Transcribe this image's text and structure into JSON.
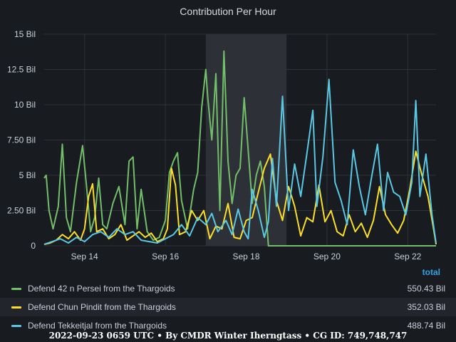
{
  "title": "Contribution Per Hour",
  "legend_header": "total",
  "footer": "2022-09-23 0659 UTC • By CMDR Winter Iherngtass • CG ID: 749,748,747",
  "chart_data": {
    "type": "line",
    "title": "Contribution Per Hour",
    "ylim": [
      0,
      15
    ],
    "y_ticks": [
      {
        "value": 0,
        "label": "0"
      },
      {
        "value": 2.5,
        "label": "2.50 Bil"
      },
      {
        "value": 5,
        "label": "5 Bil"
      },
      {
        "value": 7.5,
        "label": "7.50 Bil"
      },
      {
        "value": 10,
        "label": "10 Bil"
      },
      {
        "value": 12.5,
        "label": "12.5 Bil"
      },
      {
        "value": 15,
        "label": "15 Bil"
      }
    ],
    "x_range_days": [
      13.0,
      22.7
    ],
    "x_ticks": [
      {
        "value": 14,
        "label": "Sep 14"
      },
      {
        "value": 16,
        "label": "Sep 16"
      },
      {
        "value": 18,
        "label": "Sep 18"
      },
      {
        "value": 20,
        "label": "Sep 20"
      },
      {
        "value": 22,
        "label": "Sep 22"
      }
    ],
    "highlight_band_days": [
      17.0,
      19.0
    ],
    "grid": true,
    "series": [
      {
        "name": "Defend 42 n Persei from the Thargoids",
        "color": "#73bf69",
        "total": "550.43 Bil",
        "x": [
          13.0,
          13.05,
          13.12,
          13.22,
          13.35,
          13.45,
          13.55,
          13.65,
          13.8,
          13.95,
          14.05,
          14.15,
          14.25,
          14.35,
          14.45,
          14.55,
          14.7,
          14.85,
          15.0,
          15.1,
          15.2,
          15.3,
          15.4,
          15.55,
          15.7,
          15.85,
          16.0,
          16.1,
          16.2,
          16.3,
          16.4,
          16.55,
          16.7,
          16.8,
          16.9,
          17.0,
          17.05,
          17.15,
          17.25,
          17.35,
          17.45,
          17.55,
          17.65,
          17.75,
          17.85,
          17.95,
          18.05,
          18.15,
          18.25,
          18.35,
          18.45,
          18.55,
          18.65,
          18.75,
          18.85,
          18.95,
          19.1,
          19.5,
          20.0,
          20.5,
          21.0,
          21.5,
          22.0,
          22.5,
          22.7
        ],
        "values": [
          4.8,
          5.0,
          2.5,
          1.2,
          2.8,
          7.2,
          2.0,
          1.0,
          4.5,
          7.1,
          4.2,
          1.0,
          2.0,
          4.8,
          1.5,
          1.2,
          3.0,
          4.2,
          1.5,
          6.0,
          6.3,
          1.2,
          4.0,
          1.0,
          0.4,
          0.6,
          1.8,
          5.2,
          6.0,
          6.6,
          3.2,
          1.2,
          4.0,
          5.2,
          9.8,
          12.5,
          10.5,
          7.5,
          12.2,
          2.5,
          13.8,
          6.0,
          3.0,
          5.0,
          5.5,
          10.5,
          6.8,
          3.0,
          5.0,
          6.0,
          4.2,
          0.0,
          0.0,
          0.0,
          0.0,
          0.0,
          0.0,
          0.0,
          0.0,
          0.0,
          0.0,
          0.0,
          0.0,
          0.0,
          0.0
        ]
      },
      {
        "name": "Defend Chun Pindit from the Thargoids",
        "color": "#fade2a",
        "total": "352.03 Bil",
        "x": [
          13.0,
          13.15,
          13.3,
          13.45,
          13.6,
          13.75,
          13.9,
          14.0,
          14.1,
          14.2,
          14.3,
          14.45,
          14.6,
          14.75,
          14.9,
          15.05,
          15.2,
          15.35,
          15.5,
          15.65,
          15.8,
          15.95,
          16.05,
          16.15,
          16.25,
          16.35,
          16.5,
          16.65,
          16.8,
          16.95,
          17.1,
          17.25,
          17.4,
          17.55,
          17.7,
          17.85,
          18.0,
          18.15,
          18.3,
          18.45,
          18.6,
          18.75,
          18.9,
          19.05,
          19.2,
          19.35,
          19.5,
          19.65,
          19.8,
          19.95,
          20.1,
          20.25,
          20.4,
          20.55,
          20.7,
          20.85,
          21.0,
          21.15,
          21.3,
          21.45,
          21.6,
          21.75,
          21.9,
          22.05,
          22.2,
          22.35,
          22.5,
          22.65,
          22.7
        ],
        "values": [
          0.1,
          0.2,
          0.4,
          0.8,
          0.5,
          1.0,
          0.4,
          1.2,
          3.5,
          4.4,
          1.0,
          1.2,
          0.5,
          0.8,
          1.5,
          0.4,
          0.7,
          1.0,
          0.6,
          0.9,
          0.3,
          0.5,
          1.2,
          5.5,
          4.3,
          0.8,
          1.0,
          2.5,
          1.8,
          2.5,
          0.5,
          1.4,
          1.2,
          3.0,
          0.6,
          0.5,
          1.8,
          2.0,
          3.8,
          5.5,
          6.5,
          3.2,
          1.8,
          4.2,
          2.8,
          0.7,
          2.0,
          1.7,
          4.3,
          1.7,
          2.5,
          1.0,
          0.7,
          2.2,
          1.0,
          1.6,
          0.6,
          1.8,
          4.2,
          2.2,
          1.5,
          0.9,
          1.8,
          4.0,
          6.7,
          5.0,
          3.5,
          1.0,
          0.1
        ]
      },
      {
        "name": "Defend Tekkeitjal from the Thargoids",
        "color": "#5bc8e3",
        "total": "488.74 Bil",
        "x": [
          13.0,
          13.2,
          13.4,
          13.6,
          13.8,
          14.0,
          14.2,
          14.4,
          14.6,
          14.8,
          15.0,
          15.2,
          15.4,
          15.6,
          15.8,
          16.0,
          16.2,
          16.4,
          16.6,
          16.8,
          17.0,
          17.15,
          17.3,
          17.5,
          17.65,
          17.8,
          17.95,
          18.05,
          18.15,
          18.3,
          18.45,
          18.55,
          18.65,
          18.75,
          18.9,
          19.05,
          19.2,
          19.35,
          19.5,
          19.65,
          19.75,
          19.9,
          20.05,
          20.2,
          20.35,
          20.5,
          20.65,
          20.8,
          20.95,
          21.1,
          21.25,
          21.4,
          21.5,
          21.65,
          21.8,
          21.95,
          22.1,
          22.2,
          22.3,
          22.45,
          22.6,
          22.7
        ],
        "values": [
          0.1,
          0.3,
          0.5,
          0.2,
          0.6,
          0.3,
          0.8,
          1.0,
          0.6,
          1.2,
          0.8,
          1.0,
          0.4,
          0.3,
          0.2,
          0.5,
          0.8,
          1.5,
          0.7,
          2.0,
          1.5,
          2.3,
          1.0,
          1.8,
          0.8,
          2.6,
          1.0,
          0.5,
          4.0,
          2.5,
          0.6,
          1.7,
          6.2,
          2.8,
          10.6,
          2.5,
          5.8,
          3.5,
          6.5,
          9.6,
          2.8,
          6.3,
          11.8,
          4.5,
          3.2,
          1.5,
          6.8,
          4.2,
          2.2,
          4.8,
          7.2,
          2.5,
          5.2,
          3.8,
          3.5,
          2.2,
          4.5,
          10.3,
          3.5,
          6.5,
          2.2,
          0.2
        ]
      }
    ]
  }
}
